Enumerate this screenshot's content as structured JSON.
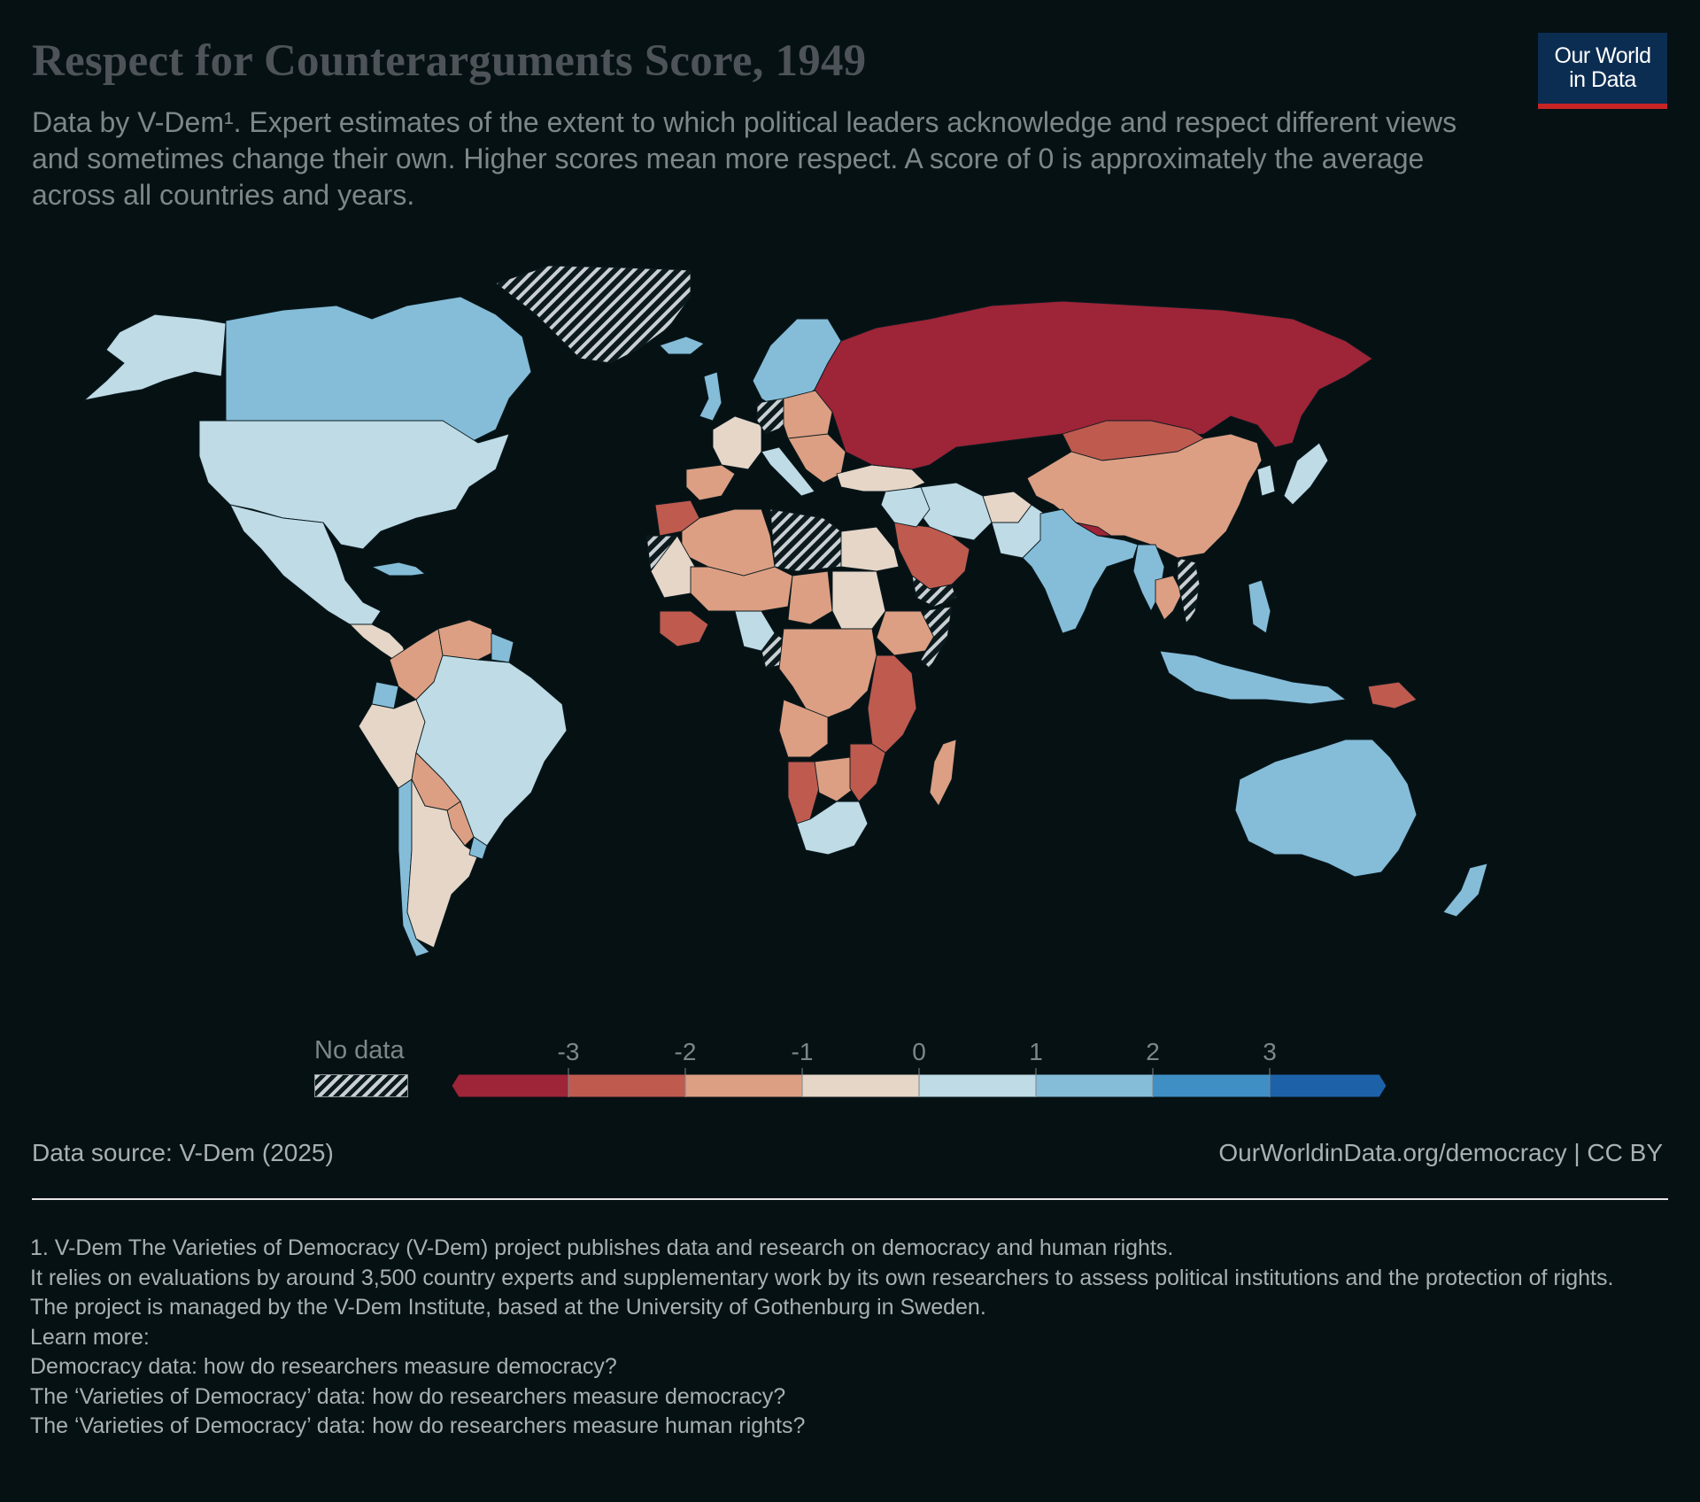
{
  "header": {
    "title": "Respect for Counterarguments Score, 1949",
    "subtitle": "Data by V-Dem¹. Expert estimates of the extent to which political leaders acknowledge and respect different views and sometimes change their own. Higher scores mean more respect. A score of 0 is approximately the average across all countries and years.",
    "logo_text": "Our World\nin Data",
    "logo_bg": "#0c2d52",
    "logo_accent": "#c72525"
  },
  "legend": {
    "no_data_label": "No data",
    "ticks": [
      "-3",
      "-2",
      "-1",
      "0",
      "1",
      "2",
      "3"
    ],
    "bins": [
      {
        "min": -4,
        "max": -3,
        "color": "#9e2438"
      },
      {
        "min": -3,
        "max": -2,
        "color": "#bf5a4f"
      },
      {
        "min": -2,
        "max": -1,
        "color": "#dc9f83"
      },
      {
        "min": -1,
        "max": 0,
        "color": "#e6d6c8"
      },
      {
        "min": 0,
        "max": 1,
        "color": "#bedbe6"
      },
      {
        "min": 1,
        "max": 2,
        "color": "#85bdd9"
      },
      {
        "min": 2,
        "max": 3,
        "color": "#3f8fc4"
      },
      {
        "min": 3,
        "max": 4,
        "color": "#1d62a8"
      }
    ]
  },
  "map_data": {
    "regions": [
      {
        "id": "Canada",
        "value": 1.4
      },
      {
        "id": "Alaska",
        "value": 0.6
      },
      {
        "id": "United States",
        "value": 0.5
      },
      {
        "id": "Mexico",
        "value": 0.4
      },
      {
        "id": "Central America",
        "value": -0.8
      },
      {
        "id": "Cuba",
        "value": 1.6
      },
      {
        "id": "Greenland",
        "value": null
      },
      {
        "id": "Colombia",
        "value": -1.4
      },
      {
        "id": "Venezuela",
        "value": -1.6
      },
      {
        "id": "Guyana",
        "value": 1.3
      },
      {
        "id": "Ecuador",
        "value": 1.2
      },
      {
        "id": "Peru",
        "value": -0.6
      },
      {
        "id": "Brazil",
        "value": 0.6
      },
      {
        "id": "Bolivia",
        "value": -1.5
      },
      {
        "id": "Paraguay",
        "value": -1.7
      },
      {
        "id": "Chile",
        "value": 1.3
      },
      {
        "id": "Argentina",
        "value": -0.5
      },
      {
        "id": "Uruguay",
        "value": 1.4
      },
      {
        "id": "Iceland",
        "value": 1.3
      },
      {
        "id": "UK",
        "value": 1.5
      },
      {
        "id": "Scandinavia",
        "value": 1.5
      },
      {
        "id": "France",
        "value": -0.4
      },
      {
        "id": "Spain",
        "value": -1.6
      },
      {
        "id": "Germany",
        "value": null
      },
      {
        "id": "Central Europe",
        "value": -1.8
      },
      {
        "id": "Italy",
        "value": 0.8
      },
      {
        "id": "Balkans",
        "value": -2.0
      },
      {
        "id": "Turkey",
        "value": -0.5
      },
      {
        "id": "Russia",
        "value": -3.3
      },
      {
        "id": "Mongolia",
        "value": -2.4
      },
      {
        "id": "China",
        "value": -1.4
      },
      {
        "id": "Korea",
        "value": 0.3
      },
      {
        "id": "Japan",
        "value": 0.8
      },
      {
        "id": "Iran",
        "value": 0.3
      },
      {
        "id": "Afghanistan",
        "value": -0.5
      },
      {
        "id": "Pakistan",
        "value": 0.6
      },
      {
        "id": "India",
        "value": 1.3
      },
      {
        "id": "Nepal",
        "value": -3.2
      },
      {
        "id": "Myanmar",
        "value": 1.3
      },
      {
        "id": "Thailand",
        "value": -1.2
      },
      {
        "id": "Vietnam",
        "value": null
      },
      {
        "id": "Philippines",
        "value": 1.5
      },
      {
        "id": "Indonesia",
        "value": 1.2
      },
      {
        "id": "Papua New Guinea",
        "value": -2.2
      },
      {
        "id": "Australia",
        "value": 1.3
      },
      {
        "id": "New Zealand",
        "value": 1.3
      },
      {
        "id": "Arabia",
        "value": -2.2
      },
      {
        "id": "Yemen",
        "value": null
      },
      {
        "id": "Iraq Syria",
        "value": 0.5
      },
      {
        "id": "Morocco",
        "value": -2.1
      },
      {
        "id": "Algeria",
        "value": -1.3
      },
      {
        "id": "Libya",
        "value": null
      },
      {
        "id": "Egypt",
        "value": -0.4
      },
      {
        "id": "Western Sahara",
        "value": null
      },
      {
        "id": "Mauritania",
        "value": -0.5
      },
      {
        "id": "Mali Niger",
        "value": -1.3
      },
      {
        "id": "West Coast",
        "value": -2.3
      },
      {
        "id": "Nigeria",
        "value": 0.6
      },
      {
        "id": "Cameroon",
        "value": null
      },
      {
        "id": "Chad",
        "value": -1.2
      },
      {
        "id": "Sudan",
        "value": -0.6
      },
      {
        "id": "Ethiopia",
        "value": -1.4
      },
      {
        "id": "Somalia",
        "value": null
      },
      {
        "id": "Central Africa",
        "value": -1.5
      },
      {
        "id": "East Africa",
        "value": -2.3
      },
      {
        "id": "Angola",
        "value": -1.4
      },
      {
        "id": "Namibia",
        "value": -2.2
      },
      {
        "id": "Botswana",
        "value": -1.2
      },
      {
        "id": "Mozambique",
        "value": -2.2
      },
      {
        "id": "South Africa",
        "value": 0.6
      },
      {
        "id": "Madagascar",
        "value": -1.5
      }
    ]
  },
  "footer": {
    "source": "Data source: V-Dem (2025)",
    "url": "OurWorldinData.org/democracy | CC BY",
    "notes": [
      "1. V-Dem The Varieties of Democracy (V-Dem) project publishes data and research on democracy and human rights.",
      "It relies on evaluations by around 3,500 country experts and supplementary work by its own researchers to assess political institutions and the protection of rights.",
      "The project is managed by the V-Dem Institute, based at the University of Gothenburg in Sweden.",
      "Learn more:",
      "Democracy data: how do researchers measure democracy?",
      "The ‘Varieties of Democracy’ data: how do researchers measure democracy?",
      "The ‘Varieties of Democracy’ data: how do researchers measure human rights?"
    ]
  }
}
